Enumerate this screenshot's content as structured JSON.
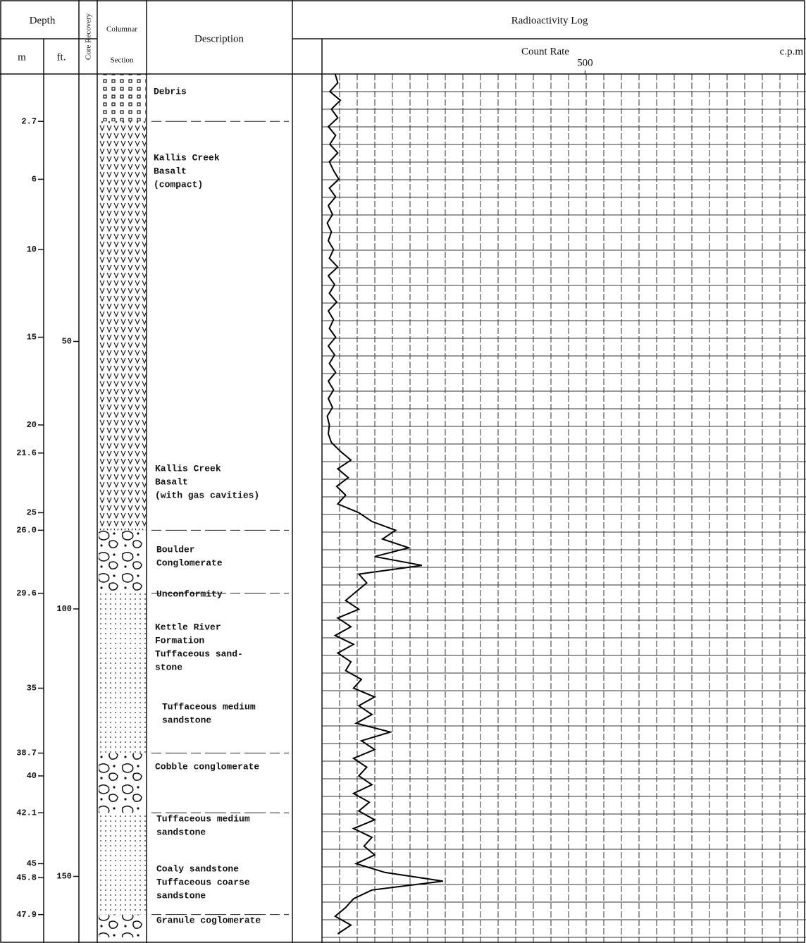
{
  "header": {
    "depth": "Depth",
    "m": "m",
    "ft": "ft.",
    "core_recovery": "Core Recovery",
    "columnar": [
      "Columnar",
      "Section"
    ],
    "description": "Description",
    "log_title": "Radioactivity Log",
    "count_rate": "Count Rate",
    "unit": "c.p.m"
  },
  "depth_m": {
    "lim": [
      0,
      49.2
    ],
    "ticks": [
      2.7,
      6,
      10,
      15,
      20,
      21.6,
      25,
      {
        "value": 26,
        "label": "26.0"
      },
      29.6,
      35,
      38.7,
      40,
      42.1,
      45,
      45.8,
      47.9
    ]
  },
  "depth_ft": {
    "lim": [
      0,
      161.4
    ],
    "ticks": [
      50,
      100,
      150
    ]
  },
  "layers": [
    {
      "pattern": "debris",
      "from": 0,
      "to": 2.7
    },
    {
      "pattern": "basalt",
      "from": 2.7,
      "to": 26
    },
    {
      "pattern": "conglomerate",
      "from": 26,
      "to": 29.6
    },
    {
      "pattern": "sandstone",
      "from": 29.6,
      "to": 38.7
    },
    {
      "pattern": "conglomerate",
      "from": 38.7,
      "to": 42.1
    },
    {
      "pattern": "sandstone",
      "from": 42.1,
      "to": 47.9
    },
    {
      "pattern": "conglomerate",
      "from": 47.9,
      "to": 49.2
    }
  ],
  "descriptions": [
    [
      "Debris"
    ],
    [
      "Kallis Creek",
      "Basalt",
      "(compact)"
    ],
    [
      "Kallis Creek",
      "Basalt",
      "(with gas cavities)"
    ],
    [
      "Boulder",
      "Conglomerate"
    ],
    [
      "Unconformity"
    ],
    [
      "Kettle River",
      "Formation",
      "Tuffaceous  sand-",
      "stone"
    ],
    [
      "Tuffaceous medium",
      "sandstone"
    ],
    [
      "Cobble conglomerate"
    ],
    [
      "Tuffaceous medium",
      "sandstone"
    ],
    [
      "Coaly sandstone",
      "Tuffaceous coarse",
      "sandstone"
    ],
    [
      "Granule coglomerate"
    ]
  ],
  "log": {
    "xlim": [
      0,
      920
    ],
    "xticks": [
      500
    ],
    "depth": [
      0,
      0.5,
      1,
      1.5,
      2,
      2.5,
      3,
      3.5,
      4,
      4.5,
      5,
      5.5,
      6,
      6.5,
      7,
      7.5,
      8,
      8.5,
      9,
      9.5,
      10,
      10.5,
      11,
      11.5,
      12,
      12.5,
      13,
      13.5,
      14,
      14.5,
      15,
      15.5,
      16,
      16.5,
      17,
      17.5,
      18,
      18.5,
      19,
      19.5,
      20,
      20.5,
      21,
      21.5,
      22,
      22.5,
      23,
      23.5,
      24,
      24.5,
      25,
      25.5,
      26,
      26.5,
      27,
      27.5,
      28,
      28.5,
      29,
      29.5,
      30,
      30.5,
      31,
      31.5,
      32,
      32.5,
      33,
      33.5,
      34,
      34.5,
      35,
      35.5,
      36,
      36.5,
      37,
      37.5,
      38,
      38.5,
      39,
      39.5,
      40,
      40.5,
      41,
      41.5,
      42,
      42.5,
      43,
      43.5,
      44,
      44.5,
      45,
      45.5,
      46,
      46.5,
      47,
      47.5,
      48,
      48.5,
      49
    ],
    "count_rate": [
      25,
      30,
      15,
      35,
      18,
      30,
      12,
      26,
      15,
      30,
      14,
      22,
      32,
      14,
      26,
      12,
      20,
      10,
      18,
      12,
      22,
      14,
      30,
      12,
      24,
      14,
      28,
      12,
      22,
      14,
      26,
      12,
      24,
      14,
      26,
      12,
      22,
      12,
      20,
      10,
      14,
      12,
      18,
      35,
      55,
      30,
      50,
      28,
      45,
      30,
      70,
      95,
      140,
      115,
      165,
      100,
      190,
      70,
      85,
      65,
      45,
      70,
      30,
      55,
      25,
      60,
      30,
      55,
      45,
      75,
      60,
      100,
      70,
      95,
      65,
      130,
      75,
      100,
      60,
      85,
      70,
      95,
      60,
      90,
      70,
      100,
      60,
      95,
      80,
      100,
      65,
      120,
      230,
      95,
      60,
      45,
      25,
      55,
      30
    ]
  }
}
